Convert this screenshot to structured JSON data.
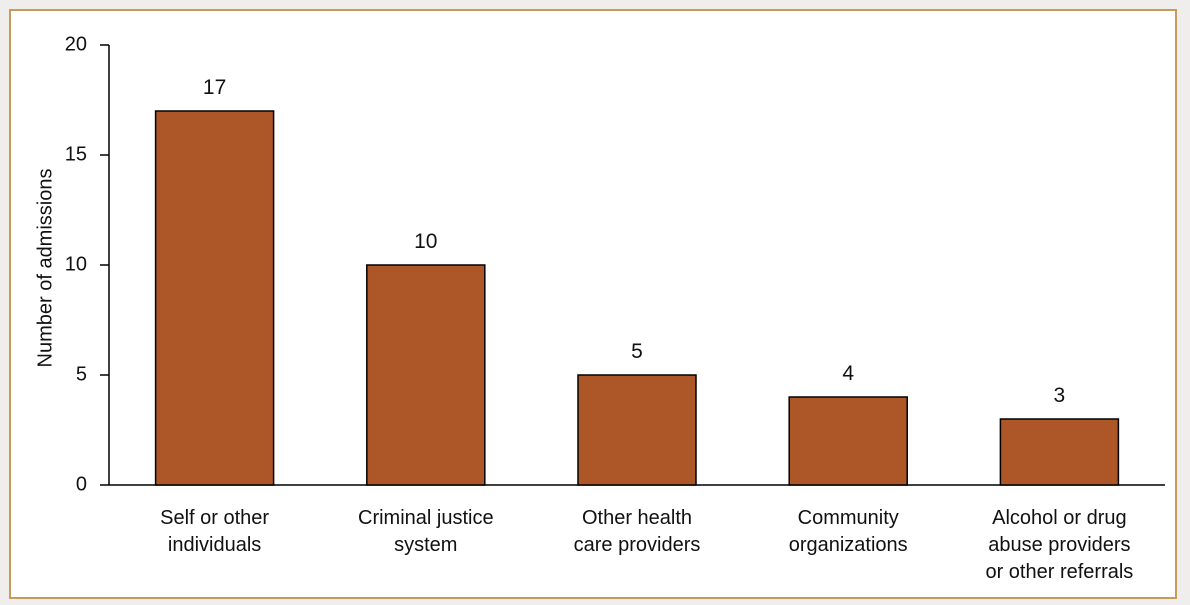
{
  "chart_data": {
    "type": "bar",
    "title": "",
    "xlabel": "",
    "ylabel": "Number of admissions",
    "ylim": [
      0,
      20
    ],
    "yticks": [
      0,
      5,
      10,
      15,
      20
    ],
    "categories": [
      [
        "Self or other",
        "individuals"
      ],
      [
        "Criminal justice",
        "system"
      ],
      [
        "Other health",
        "care providers"
      ],
      [
        "Community",
        "organizations"
      ],
      [
        "Alcohol or drug",
        "abuse providers",
        "or other referrals"
      ]
    ],
    "values": [
      17,
      10,
      5,
      4,
      3
    ],
    "data_labels": [
      "17",
      "10",
      "5",
      "4",
      "3"
    ],
    "bar_color": "#ad5628",
    "bar_stroke": "#000000",
    "grid": false,
    "legend": "none"
  }
}
